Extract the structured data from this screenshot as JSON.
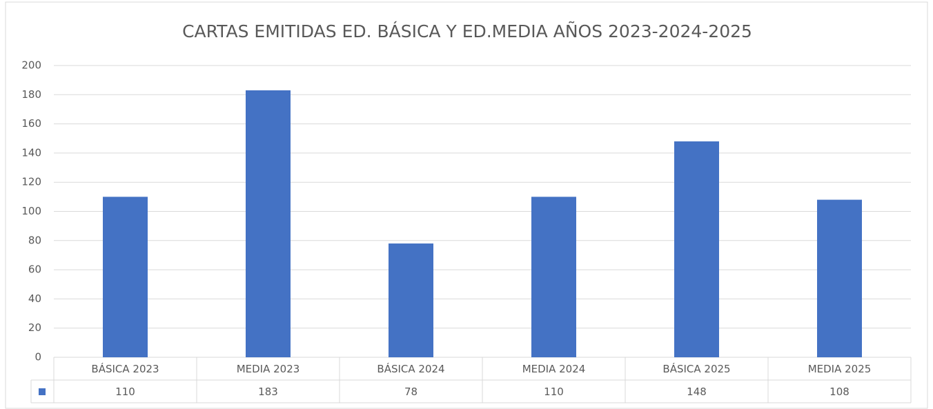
{
  "chart_data": {
    "type": "bar",
    "title": "CARTAS EMITIDAS ED. BÁSICA Y ED.MEDIA  AÑOS 2023-2024-2025",
    "categories": [
      "BÁSICA 2023",
      "MEDIA 2023",
      "BÁSICA 2024",
      "MEDIA 2024",
      "BÁSICA 2025",
      "MEDIA 2025"
    ],
    "values": [
      110,
      183,
      78,
      110,
      148,
      108
    ],
    "color": "#4472c4",
    "ylim": [
      0,
      200
    ],
    "yticks": [
      0,
      20,
      40,
      60,
      80,
      100,
      120,
      140,
      160,
      180,
      200
    ],
    "grid": true
  }
}
